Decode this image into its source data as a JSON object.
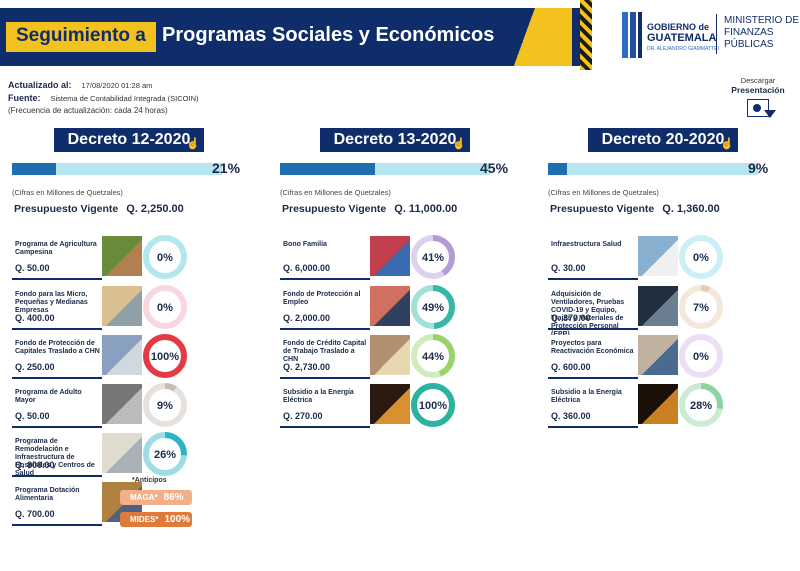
{
  "header": {
    "title_part_a": "Seguimiento a",
    "title_part_b": "Programas Sociales y Económicos",
    "gov_line1": "GOBIERNO de",
    "gov_line2": "GUATEMALA",
    "gov_line3": "DR. ALEJANDRO GIAMMATTEI",
    "ministry": "MINISTERIO DE FINANZAS PÚBLICAS"
  },
  "meta": {
    "updated_label": "Actualizado al:",
    "updated_value": "17/08/2020 01:28 am",
    "source_label": "Fuente:",
    "source_value": "Sistema de Contabilidad Integrada (SICOIN)",
    "frequency": "(Frecuencia de actualización: cada 24 horas)"
  },
  "download": {
    "label_a": "Descargar",
    "label_b": "Presentación",
    "icon": "presentation-download-icon"
  },
  "colors": {
    "navy": "#0f2d6b",
    "yellow": "#f4c21e",
    "bar_fill": "#1f6fb0",
    "bar_bg": "#b6e6f0"
  },
  "decrees": [
    {
      "title": "Decreto 12-2020",
      "progress": 0.21,
      "progress_text": "21%",
      "cifras": "(Cifras en Millones de Quetzales)",
      "budget_label": "Presupuesto Vigente",
      "budget_value": "Q. 2,250.00",
      "items": [
        {
          "name": "Programa de Agricultura Campesina",
          "amount": "Q. 50.00",
          "pct": "0%",
          "value": 0.0,
          "color": "#55c9d6"
        },
        {
          "name": "Fondo para las Micro, Pequeñas y Medianas Empresas",
          "amount": "Q. 400.00",
          "pct": "0%",
          "value": 0.0,
          "color": "#f0a6be"
        },
        {
          "name": "Fondo de Protección de Capitales Traslado a CHN",
          "amount": "Q. 250.00",
          "pct": "100%",
          "value": 1.0,
          "color": "#e23b46"
        },
        {
          "name": "Programa de Adulto Mayor",
          "amount": "Q. 50.00",
          "pct": "9%",
          "value": 0.09,
          "color": "#c9bdb3"
        },
        {
          "name": "Programa de Remodelación e Infraestructura de Hospitales y Centros de Salud",
          "amount": "Q. 800.00",
          "pct": "26%",
          "value": 0.26,
          "color": "#2bb3c8"
        },
        {
          "name": "Programa Dotación Alimentaria",
          "amount": "Q. 700.00",
          "pct": "",
          "value": null,
          "color": ""
        }
      ],
      "anticipos": {
        "label": "*Anticipos",
        "rows": [
          {
            "label": "MAGA*",
            "value": "86%",
            "color": "#f2b08a"
          },
          {
            "label": "MIDES*",
            "value": "100%",
            "color": "#e07a3a"
          }
        ]
      }
    },
    {
      "title": "Decreto 13-2020",
      "progress": 0.45,
      "progress_text": "45%",
      "cifras": "(Cifras en Millones de Quetzales)",
      "budget_label": "Presupuesto Vigente",
      "budget_value": "Q. 11,000.00",
      "items": [
        {
          "name": "Bono Familia",
          "amount": "Q. 6,000.00",
          "pct": "41%",
          "value": 0.41,
          "color": "#b49bd8"
        },
        {
          "name": "Fondo de Protección al Empleo",
          "amount": "Q. 2,000.00",
          "pct": "49%",
          "value": 0.49,
          "color": "#36b7a8"
        },
        {
          "name": "Fondo de Crédito Capital de Trabajo Traslado a CHN",
          "amount": "Q. 2,730.00",
          "pct": "44%",
          "value": 0.44,
          "color": "#9ad36b"
        },
        {
          "name": "Subsidio a la Energía Eléctrica",
          "amount": "Q. 270.00",
          "pct": "100%",
          "value": 1.0,
          "color": "#2bb3a0"
        }
      ]
    },
    {
      "title": "Decreto 20-2020",
      "progress": 0.09,
      "progress_text": "9%",
      "cifras": "(Cifras en Millones de Quetzales)",
      "budget_label": "Presupuesto Vigente",
      "budget_value": "Q. 1,360.00",
      "items": [
        {
          "name": "Infraestructura Salud",
          "amount": "Q. 30.00",
          "pct": "0%",
          "value": 0.0,
          "color": "#8fd9e8"
        },
        {
          "name": "Adquisición de Ventiladores, Pruebas COVID-19 y Equipo, Trajes y Materiales de Protección Personal (EPP)",
          "amount": "Q. 370.00",
          "pct": "7%",
          "value": 0.07,
          "color": "#e8cbb0"
        },
        {
          "name": "Proyectos para Reactivación Económica",
          "amount": "Q. 600.00",
          "pct": "0%",
          "value": 0.0,
          "color": "#d5b8e8"
        },
        {
          "name": "Subsidio a la Energía Eléctrica",
          "amount": "Q. 360.00",
          "pct": "28%",
          "value": 0.28,
          "color": "#8fd3a0"
        }
      ]
    }
  ]
}
